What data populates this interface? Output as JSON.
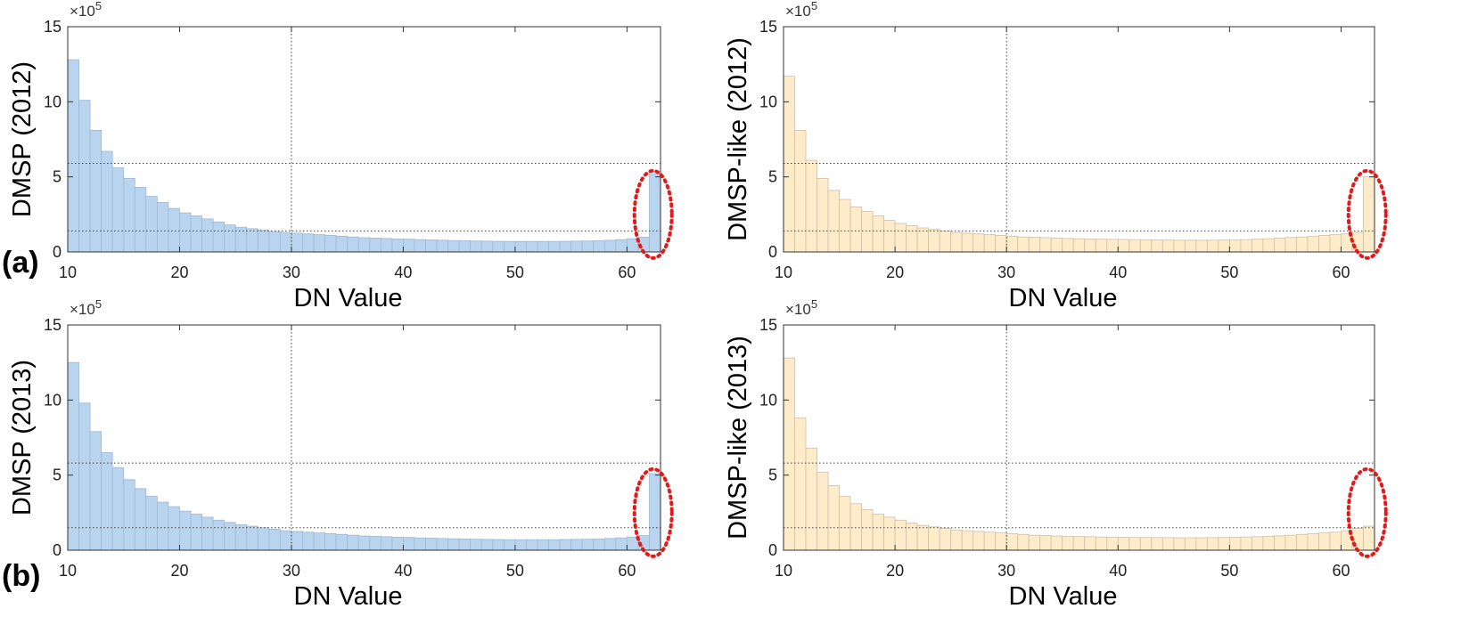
{
  "panel_letters": [
    "(a)",
    "(b)"
  ],
  "colors": {
    "blue_fill": "#b9d4ef",
    "blue_edge": "#a0b8d2",
    "orange_fill": "#fdebc9",
    "orange_edge": "#cfc0a8",
    "highlight": "#e11a1a",
    "ref_line": "#444444"
  },
  "chart_data": [
    {
      "type": "bar",
      "ylabel": "DMSP (2012)",
      "xlabel": "DN Value",
      "exponent_label": "×10",
      "exponent_power": "5",
      "xlim": [
        10,
        63
      ],
      "ylim": [
        0,
        15
      ],
      "xticks": [
        "10",
        "20",
        "30",
        "40",
        "50",
        "60"
      ],
      "yticks": [
        "0",
        "5",
        "10",
        "15"
      ],
      "bar_color": "#b9d4ef",
      "x": [
        10,
        11,
        12,
        13,
        14,
        15,
        16,
        17,
        18,
        19,
        20,
        21,
        22,
        23,
        24,
        25,
        26,
        27,
        28,
        29,
        30,
        31,
        32,
        33,
        34,
        35,
        36,
        37,
        38,
        39,
        40,
        41,
        42,
        43,
        44,
        45,
        46,
        47,
        48,
        49,
        50,
        51,
        52,
        53,
        54,
        55,
        56,
        57,
        58,
        59,
        60,
        61,
        62
      ],
      "values": [
        12.8,
        10.1,
        8.1,
        6.7,
        5.6,
        4.9,
        4.3,
        3.7,
        3.3,
        2.9,
        2.6,
        2.4,
        2.2,
        2.0,
        1.8,
        1.65,
        1.55,
        1.45,
        1.35,
        1.3,
        1.25,
        1.2,
        1.15,
        1.1,
        1.05,
        1.0,
        0.95,
        0.92,
        0.9,
        0.87,
        0.85,
        0.82,
        0.8,
        0.78,
        0.76,
        0.75,
        0.73,
        0.72,
        0.71,
        0.7,
        0.7,
        0.7,
        0.7,
        0.7,
        0.71,
        0.72,
        0.73,
        0.75,
        0.78,
        0.82,
        0.88,
        0.98,
        5.2
      ],
      "ref_lines": {
        "y": [
          5.9,
          1.4
        ],
        "x": [
          30
        ]
      },
      "highlight": "DN 63"
    },
    {
      "type": "bar",
      "ylabel": "DMSP-like (2012)",
      "xlabel": "DN Value",
      "exponent_label": "×10",
      "exponent_power": "5",
      "xlim": [
        10,
        63
      ],
      "ylim": [
        0,
        15
      ],
      "xticks": [
        "10",
        "20",
        "30",
        "40",
        "50",
        "60"
      ],
      "yticks": [
        "0",
        "5",
        "10",
        "15"
      ],
      "bar_color": "#fdebc9",
      "x": [
        10,
        11,
        12,
        13,
        14,
        15,
        16,
        17,
        18,
        19,
        20,
        21,
        22,
        23,
        24,
        25,
        26,
        27,
        28,
        29,
        30,
        31,
        32,
        33,
        34,
        35,
        36,
        37,
        38,
        39,
        40,
        41,
        42,
        43,
        44,
        45,
        46,
        47,
        48,
        49,
        50,
        51,
        52,
        53,
        54,
        55,
        56,
        57,
        58,
        59,
        60,
        61,
        62
      ],
      "values": [
        11.7,
        8.1,
        6.1,
        4.9,
        4.1,
        3.5,
        3.0,
        2.7,
        2.4,
        2.1,
        1.9,
        1.75,
        1.6,
        1.5,
        1.4,
        1.3,
        1.25,
        1.2,
        1.15,
        1.1,
        1.05,
        1.0,
        0.98,
        0.95,
        0.92,
        0.9,
        0.88,
        0.86,
        0.85,
        0.84,
        0.83,
        0.82,
        0.81,
        0.8,
        0.79,
        0.78,
        0.78,
        0.78,
        0.78,
        0.79,
        0.8,
        0.82,
        0.85,
        0.88,
        0.92,
        0.96,
        1.0,
        1.05,
        1.1,
        1.15,
        1.2,
        1.3,
        5.0
      ],
      "ref_lines": {
        "y": [
          5.9,
          1.4
        ],
        "x": [
          30
        ]
      },
      "highlight": "DN 63"
    },
    {
      "type": "bar",
      "ylabel": "DMSP (2013)",
      "xlabel": "DN Value",
      "exponent_label": "×10",
      "exponent_power": "5",
      "xlim": [
        10,
        63
      ],
      "ylim": [
        0,
        15
      ],
      "xticks": [
        "10",
        "20",
        "30",
        "40",
        "50",
        "60"
      ],
      "yticks": [
        "0",
        "5",
        "10",
        "15"
      ],
      "bar_color": "#b9d4ef",
      "x": [
        10,
        11,
        12,
        13,
        14,
        15,
        16,
        17,
        18,
        19,
        20,
        21,
        22,
        23,
        24,
        25,
        26,
        27,
        28,
        29,
        30,
        31,
        32,
        33,
        34,
        35,
        36,
        37,
        38,
        39,
        40,
        41,
        42,
        43,
        44,
        45,
        46,
        47,
        48,
        49,
        50,
        51,
        52,
        53,
        54,
        55,
        56,
        57,
        58,
        59,
        60,
        61,
        62
      ],
      "values": [
        12.5,
        9.8,
        7.9,
        6.5,
        5.5,
        4.7,
        4.1,
        3.6,
        3.2,
        2.9,
        2.6,
        2.4,
        2.2,
        2.0,
        1.85,
        1.7,
        1.6,
        1.5,
        1.4,
        1.3,
        1.25,
        1.2,
        1.15,
        1.1,
        1.05,
        1.0,
        0.95,
        0.92,
        0.9,
        0.87,
        0.85,
        0.82,
        0.8,
        0.78,
        0.76,
        0.75,
        0.73,
        0.72,
        0.71,
        0.7,
        0.7,
        0.7,
        0.7,
        0.7,
        0.71,
        0.72,
        0.73,
        0.75,
        0.78,
        0.82,
        0.88,
        0.98,
        5.1
      ],
      "ref_lines": {
        "y": [
          5.8,
          1.5
        ],
        "x": [
          30
        ]
      },
      "highlight": "DN 63"
    },
    {
      "type": "bar",
      "ylabel": "DMSP-like (2013)",
      "xlabel": "DN Value",
      "exponent_label": "×10",
      "exponent_power": "5",
      "xlim": [
        10,
        63
      ],
      "ylim": [
        0,
        15
      ],
      "xticks": [
        "10",
        "20",
        "30",
        "40",
        "50",
        "60"
      ],
      "yticks": [
        "0",
        "5",
        "10",
        "15"
      ],
      "bar_color": "#fdebc9",
      "x": [
        10,
        11,
        12,
        13,
        14,
        15,
        16,
        17,
        18,
        19,
        20,
        21,
        22,
        23,
        24,
        25,
        26,
        27,
        28,
        29,
        30,
        31,
        32,
        33,
        34,
        35,
        36,
        37,
        38,
        39,
        40,
        41,
        42,
        43,
        44,
        45,
        46,
        47,
        48,
        49,
        50,
        51,
        52,
        53,
        54,
        55,
        56,
        57,
        58,
        59,
        60,
        61,
        62
      ],
      "values": [
        12.8,
        8.8,
        6.8,
        5.2,
        4.3,
        3.6,
        3.1,
        2.7,
        2.4,
        2.2,
        2.0,
        1.8,
        1.65,
        1.55,
        1.45,
        1.35,
        1.3,
        1.25,
        1.2,
        1.15,
        1.1,
        1.05,
        1.0,
        0.98,
        0.95,
        0.93,
        0.91,
        0.9,
        0.88,
        0.87,
        0.86,
        0.85,
        0.85,
        0.84,
        0.84,
        0.83,
        0.83,
        0.83,
        0.84,
        0.85,
        0.86,
        0.88,
        0.9,
        0.93,
        0.96,
        1.0,
        1.05,
        1.1,
        1.15,
        1.2,
        1.3,
        1.45,
        1.6
      ],
      "ref_lines": {
        "y": [
          5.8,
          1.5
        ],
        "x": [
          30
        ]
      },
      "highlight": "DN 63"
    }
  ]
}
